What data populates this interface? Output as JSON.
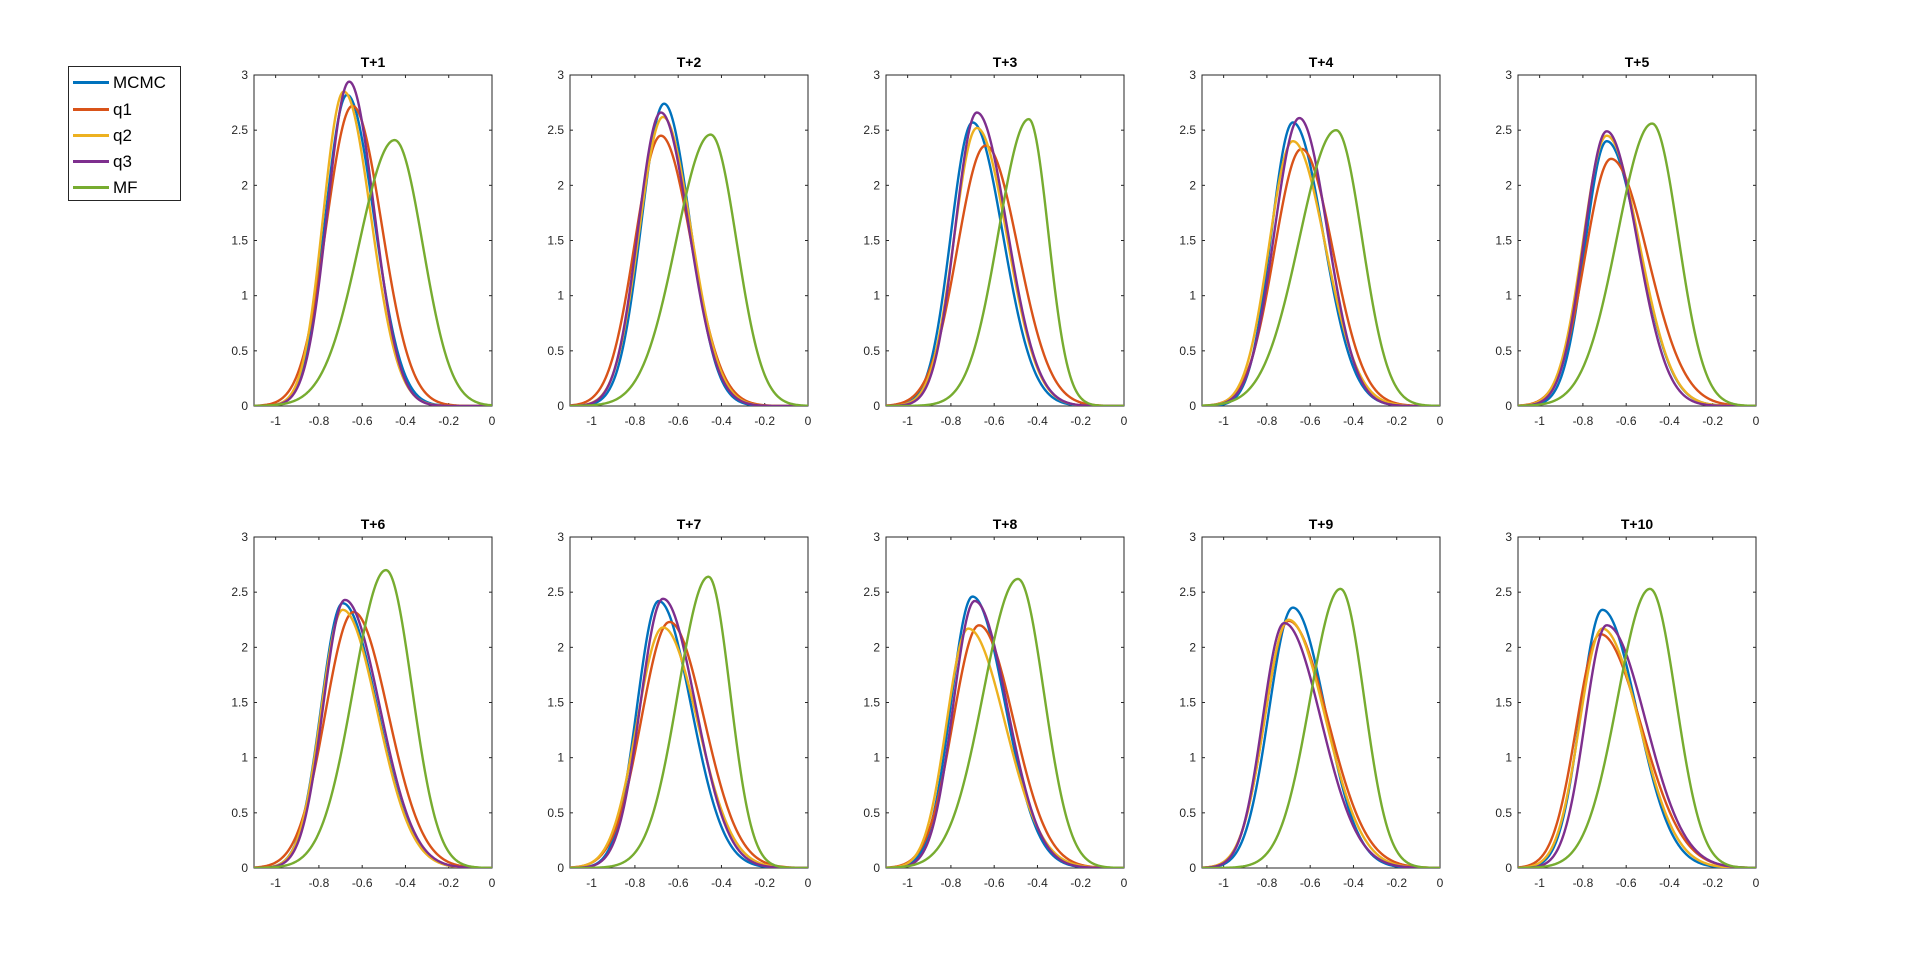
{
  "colors": {
    "MCMC": "#0072BD",
    "q1": "#D95319",
    "q2": "#EDB120",
    "q3": "#7E2F8E",
    "MF": "#77AC30"
  },
  "legend": {
    "items": [
      {
        "label": "MCMC",
        "key": "MCMC"
      },
      {
        "label": "q1",
        "key": "q1"
      },
      {
        "label": "q2",
        "key": "q2"
      },
      {
        "label": "q3",
        "key": "q3"
      },
      {
        "label": "MF",
        "key": "MF"
      }
    ]
  },
  "chart_data": [
    {
      "type": "line",
      "title": "T+1",
      "xlim": [
        -1.1,
        0
      ],
      "ylim": [
        0,
        3
      ],
      "xticks": [
        -1,
        -0.8,
        -0.6,
        -0.4,
        -0.2,
        0
      ],
      "xtick_labels": [
        "-1",
        "-0.8",
        "-0.6",
        "-0.4",
        "-0.2",
        "0"
      ],
      "yticks": [
        0,
        0.5,
        1,
        1.5,
        2,
        2.5,
        3
      ],
      "ytick_labels": [
        "0",
        "0.5",
        "1",
        "1.5",
        "2",
        "2.5",
        "3"
      ],
      "series": [
        {
          "name": "MCMC",
          "mu": -0.67,
          "peak": 2.82,
          "ls": 0.1,
          "rs": 0.125
        },
        {
          "name": "q1",
          "mu": -0.645,
          "peak": 2.72,
          "ls": 0.12,
          "rs": 0.135
        },
        {
          "name": "q2",
          "mu": -0.685,
          "peak": 2.85,
          "ls": 0.095,
          "rs": 0.125
        },
        {
          "name": "q3",
          "mu": -0.66,
          "peak": 2.94,
          "ls": 0.1,
          "rs": 0.115
        },
        {
          "name": "MF",
          "mu": -0.45,
          "peak": 2.41,
          "ls": 0.165,
          "rs": 0.13
        }
      ]
    },
    {
      "type": "line",
      "title": "T+2",
      "xlim": [
        -1.1,
        0
      ],
      "ylim": [
        0,
        3
      ],
      "xticks": [
        -1,
        -0.8,
        -0.6,
        -0.4,
        -0.2,
        0
      ],
      "xtick_labels": [
        "-1",
        "-0.8",
        "-0.6",
        "-0.4",
        "-0.2",
        "0"
      ],
      "yticks": [
        0,
        0.5,
        1,
        1.5,
        2,
        2.5,
        3
      ],
      "ytick_labels": [
        "0",
        "0.5",
        "1",
        "1.5",
        "2",
        "2.5",
        "3"
      ],
      "series": [
        {
          "name": "MCMC",
          "mu": -0.665,
          "peak": 2.74,
          "ls": 0.105,
          "rs": 0.12
        },
        {
          "name": "q1",
          "mu": -0.68,
          "peak": 2.45,
          "ls": 0.12,
          "rs": 0.14
        },
        {
          "name": "q2",
          "mu": -0.67,
          "peak": 2.62,
          "ls": 0.11,
          "rs": 0.13
        },
        {
          "name": "q3",
          "mu": -0.68,
          "peak": 2.66,
          "ls": 0.105,
          "rs": 0.13
        },
        {
          "name": "MF",
          "mu": -0.45,
          "peak": 2.46,
          "ls": 0.16,
          "rs": 0.12
        }
      ]
    },
    {
      "type": "line",
      "title": "T+3",
      "xlim": [
        -1.1,
        0
      ],
      "ylim": [
        0,
        3
      ],
      "xticks": [
        -1,
        -0.8,
        -0.6,
        -0.4,
        -0.2,
        0
      ],
      "xtick_labels": [
        "-1",
        "-0.8",
        "-0.6",
        "-0.4",
        "-0.2",
        "0"
      ],
      "yticks": [
        0,
        0.5,
        1,
        1.5,
        2,
        2.5,
        3
      ],
      "ytick_labels": [
        "0",
        "0.5",
        "1",
        "1.5",
        "2",
        "2.5",
        "3"
      ],
      "series": [
        {
          "name": "MCMC",
          "mu": -0.7,
          "peak": 2.57,
          "ls": 0.1,
          "rs": 0.14
        },
        {
          "name": "q1",
          "mu": -0.64,
          "peak": 2.36,
          "ls": 0.13,
          "rs": 0.15
        },
        {
          "name": "q2",
          "mu": -0.68,
          "peak": 2.52,
          "ls": 0.105,
          "rs": 0.14
        },
        {
          "name": "q3",
          "mu": -0.68,
          "peak": 2.66,
          "ls": 0.1,
          "rs": 0.14
        },
        {
          "name": "MF",
          "mu": -0.44,
          "peak": 2.6,
          "ls": 0.14,
          "rs": 0.09
        }
      ]
    },
    {
      "type": "line",
      "title": "T+4",
      "xlim": [
        -1.1,
        0
      ],
      "ylim": [
        0,
        3
      ],
      "xticks": [
        -1,
        -0.8,
        -0.6,
        -0.4,
        -0.2,
        0
      ],
      "xtick_labels": [
        "-1",
        "-0.8",
        "-0.6",
        "-0.4",
        "-0.2",
        "0"
      ],
      "yticks": [
        0,
        0.5,
        1,
        1.5,
        2,
        2.5,
        3
      ],
      "ytick_labels": [
        "0",
        "0.5",
        "1",
        "1.5",
        "2",
        "2.5",
        "3"
      ],
      "series": [
        {
          "name": "MCMC",
          "mu": -0.68,
          "peak": 2.57,
          "ls": 0.1,
          "rs": 0.14
        },
        {
          "name": "q1",
          "mu": -0.64,
          "peak": 2.33,
          "ls": 0.125,
          "rs": 0.145
        },
        {
          "name": "q2",
          "mu": -0.68,
          "peak": 2.4,
          "ls": 0.11,
          "rs": 0.15
        },
        {
          "name": "q3",
          "mu": -0.65,
          "peak": 2.61,
          "ls": 0.115,
          "rs": 0.13
        },
        {
          "name": "MF",
          "mu": -0.48,
          "peak": 2.5,
          "ls": 0.17,
          "rs": 0.12
        }
      ]
    },
    {
      "type": "line",
      "title": "T+5",
      "xlim": [
        -1.1,
        0
      ],
      "ylim": [
        0,
        3
      ],
      "xticks": [
        -1,
        -0.8,
        -0.6,
        -0.4,
        -0.2,
        0
      ],
      "xtick_labels": [
        "-1",
        "-0.8",
        "-0.6",
        "-0.4",
        "-0.2",
        "0"
      ],
      "yticks": [
        0,
        0.5,
        1,
        1.5,
        2,
        2.5,
        3
      ],
      "ytick_labels": [
        "0",
        "0.5",
        "1",
        "1.5",
        "2",
        "2.5",
        "3"
      ],
      "series": [
        {
          "name": "MCMC",
          "mu": -0.69,
          "peak": 2.4,
          "ls": 0.1,
          "rs": 0.15
        },
        {
          "name": "q1",
          "mu": -0.67,
          "peak": 2.24,
          "ls": 0.12,
          "rs": 0.17
        },
        {
          "name": "q2",
          "mu": -0.69,
          "peak": 2.45,
          "ls": 0.11,
          "rs": 0.15
        },
        {
          "name": "q3",
          "mu": -0.69,
          "peak": 2.49,
          "ls": 0.105,
          "rs": 0.14
        },
        {
          "name": "MF",
          "mu": -0.48,
          "peak": 2.56,
          "ls": 0.16,
          "rs": 0.12
        }
      ]
    },
    {
      "type": "line",
      "title": "T+6",
      "xlim": [
        -1.1,
        0
      ],
      "ylim": [
        0,
        3
      ],
      "xticks": [
        -1,
        -0.8,
        -0.6,
        -0.4,
        -0.2,
        0
      ],
      "xtick_labels": [
        "-1",
        "-0.8",
        "-0.6",
        "-0.4",
        "-0.2",
        "0"
      ],
      "yticks": [
        0,
        0.5,
        1,
        1.5,
        2,
        2.5,
        3
      ],
      "ytick_labels": [
        "0",
        "0.5",
        "1",
        "1.5",
        "2",
        "2.5",
        "3"
      ],
      "series": [
        {
          "name": "MCMC",
          "mu": -0.69,
          "peak": 2.4,
          "ls": 0.1,
          "rs": 0.16
        },
        {
          "name": "q1",
          "mu": -0.64,
          "peak": 2.32,
          "ls": 0.13,
          "rs": 0.16
        },
        {
          "name": "q2",
          "mu": -0.69,
          "peak": 2.34,
          "ls": 0.1,
          "rs": 0.16
        },
        {
          "name": "q3",
          "mu": -0.68,
          "peak": 2.43,
          "ls": 0.1,
          "rs": 0.16
        },
        {
          "name": "MF",
          "mu": -0.49,
          "peak": 2.7,
          "ls": 0.15,
          "rs": 0.12
        }
      ]
    },
    {
      "type": "line",
      "title": "T+7",
      "xlim": [
        -1.1,
        0
      ],
      "ylim": [
        0,
        3
      ],
      "xticks": [
        -1,
        -0.8,
        -0.6,
        -0.4,
        -0.2,
        0
      ],
      "xtick_labels": [
        "-1",
        "-0.8",
        "-0.6",
        "-0.4",
        "-0.2",
        "0"
      ],
      "yticks": [
        0,
        0.5,
        1,
        1.5,
        2,
        2.5,
        3
      ],
      "ytick_labels": [
        "0",
        "0.5",
        "1",
        "1.5",
        "2",
        "2.5",
        "3"
      ],
      "series": [
        {
          "name": "MCMC",
          "mu": -0.69,
          "peak": 2.42,
          "ls": 0.1,
          "rs": 0.15
        },
        {
          "name": "q1",
          "mu": -0.64,
          "peak": 2.23,
          "ls": 0.13,
          "rs": 0.16
        },
        {
          "name": "q2",
          "mu": -0.67,
          "peak": 2.18,
          "ls": 0.12,
          "rs": 0.16
        },
        {
          "name": "q3",
          "mu": -0.67,
          "peak": 2.44,
          "ls": 0.105,
          "rs": 0.15
        },
        {
          "name": "MF",
          "mu": -0.46,
          "peak": 2.64,
          "ls": 0.14,
          "rs": 0.1
        }
      ]
    },
    {
      "type": "line",
      "title": "T+8",
      "xlim": [
        -1.1,
        0
      ],
      "ylim": [
        0,
        3
      ],
      "xticks": [
        -1,
        -0.8,
        -0.6,
        -0.4,
        -0.2,
        0
      ],
      "xtick_labels": [
        "-1",
        "-0.8",
        "-0.6",
        "-0.4",
        "-0.2",
        "0"
      ],
      "yticks": [
        0,
        0.5,
        1,
        1.5,
        2,
        2.5,
        3
      ],
      "ytick_labels": [
        "0",
        "0.5",
        "1",
        "1.5",
        "2",
        "2.5",
        "3"
      ],
      "series": [
        {
          "name": "MCMC",
          "mu": -0.7,
          "peak": 2.46,
          "ls": 0.1,
          "rs": 0.15
        },
        {
          "name": "q1",
          "mu": -0.67,
          "peak": 2.2,
          "ls": 0.12,
          "rs": 0.16
        },
        {
          "name": "q2",
          "mu": -0.72,
          "peak": 2.17,
          "ls": 0.1,
          "rs": 0.17
        },
        {
          "name": "q3",
          "mu": -0.69,
          "peak": 2.42,
          "ls": 0.1,
          "rs": 0.15
        },
        {
          "name": "MF",
          "mu": -0.49,
          "peak": 2.62,
          "ls": 0.16,
          "rs": 0.12
        }
      ]
    },
    {
      "type": "line",
      "title": "T+9",
      "xlim": [
        -1.1,
        0
      ],
      "ylim": [
        0,
        3
      ],
      "xticks": [
        -1,
        -0.8,
        -0.6,
        -0.4,
        -0.2,
        0
      ],
      "xtick_labels": [
        "-1",
        "-0.8",
        "-0.6",
        "-0.4",
        "-0.2",
        "0"
      ],
      "yticks": [
        0,
        0.5,
        1,
        1.5,
        2,
        2.5,
        3
      ],
      "ytick_labels": [
        "0",
        "0.5",
        "1",
        "1.5",
        "2",
        "2.5",
        "3"
      ],
      "series": [
        {
          "name": "MCMC",
          "mu": -0.68,
          "peak": 2.36,
          "ls": 0.11,
          "rs": 0.15
        },
        {
          "name": "q1",
          "mu": -0.7,
          "peak": 2.24,
          "ls": 0.11,
          "rs": 0.18
        },
        {
          "name": "q2",
          "mu": -0.7,
          "peak": 2.25,
          "ls": 0.11,
          "rs": 0.17
        },
        {
          "name": "q3",
          "mu": -0.72,
          "peak": 2.22,
          "ls": 0.1,
          "rs": 0.17
        },
        {
          "name": "MF",
          "mu": -0.46,
          "peak": 2.53,
          "ls": 0.14,
          "rs": 0.11
        }
      ]
    },
    {
      "type": "line",
      "title": "T+10",
      "xlim": [
        -1.1,
        0
      ],
      "ylim": [
        0,
        3
      ],
      "xticks": [
        -1,
        -0.8,
        -0.6,
        -0.4,
        -0.2,
        0
      ],
      "xtick_labels": [
        "-1",
        "-0.8",
        "-0.6",
        "-0.4",
        "-0.2",
        "0"
      ],
      "yticks": [
        0,
        0.5,
        1,
        1.5,
        2,
        2.5,
        3
      ],
      "ytick_labels": [
        "0",
        "0.5",
        "1",
        "1.5",
        "2",
        "2.5",
        "3"
      ],
      "series": [
        {
          "name": "MCMC",
          "mu": -0.71,
          "peak": 2.34,
          "ls": 0.1,
          "rs": 0.16
        },
        {
          "name": "q1",
          "mu": -0.72,
          "peak": 2.12,
          "ls": 0.11,
          "rs": 0.19
        },
        {
          "name": "q2",
          "mu": -0.71,
          "peak": 2.17,
          "ls": 0.105,
          "rs": 0.17
        },
        {
          "name": "q3",
          "mu": -0.69,
          "peak": 2.2,
          "ls": 0.1,
          "rs": 0.18
        },
        {
          "name": "MF",
          "mu": -0.49,
          "peak": 2.53,
          "ls": 0.15,
          "rs": 0.12
        }
      ]
    }
  ]
}
